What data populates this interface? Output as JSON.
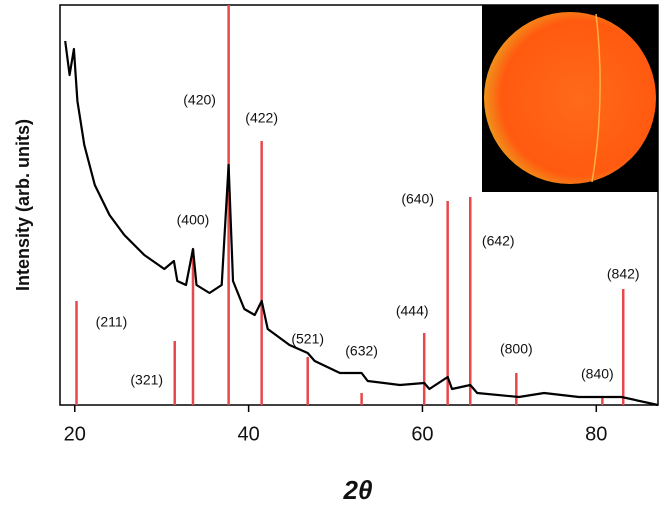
{
  "chart_data": {
    "type": "line",
    "xlabel": "2θ",
    "ylabel": "Intensity (arb. units)",
    "xlim": [
      18.3,
      87.1
    ],
    "ylim": [
      0,
      100
    ],
    "xticks": [
      20,
      40,
      60,
      80
    ],
    "color": "#000000",
    "x": [
      18.9,
      19.4,
      19.9,
      20.3,
      21.1,
      22.3,
      24.0,
      25.7,
      28.0,
      30.3,
      31.4,
      31.8,
      32.8,
      33.6,
      34.0,
      35.5,
      36.9,
      37.7,
      38.2,
      39.5,
      40.7,
      41.5,
      42.2,
      44.7,
      46.8,
      47.6,
      50.5,
      53.0,
      53.7,
      57.4,
      60.2,
      60.8,
      62.9,
      63.4,
      65.5,
      66.3,
      71.1,
      74.0,
      78.0,
      82.9,
      87.1
    ],
    "values": [
      91,
      82.5,
      89,
      76,
      65,
      55,
      47.5,
      42.5,
      37.5,
      34,
      36,
      31,
      30,
      39,
      30,
      28,
      30,
      60,
      31,
      24,
      22.5,
      26,
      19,
      15,
      13,
      11,
      8,
      8,
      6,
      5,
      5.5,
      4,
      7,
      4,
      5,
      3,
      2,
      3,
      2,
      2,
      0
    ],
    "reflections": {
      "color": "#e8474c",
      "positions": [
        20.2,
        31.5,
        33.6,
        37.7,
        41.5,
        46.8,
        53.0,
        60.2,
        62.9,
        65.5,
        70.8,
        80.7,
        83.1
      ],
      "heights": [
        26,
        16,
        39,
        100,
        66,
        12,
        3,
        18,
        51,
        52,
        8,
        2,
        29
      ],
      "labels": [
        "(211)",
        "(321)",
        "(400)",
        "(420)",
        "(422)",
        "(521)",
        "(632)",
        "(444)",
        "(640)",
        "(642)",
        "(800)",
        "(840)",
        "(842)"
      ]
    }
  }
}
